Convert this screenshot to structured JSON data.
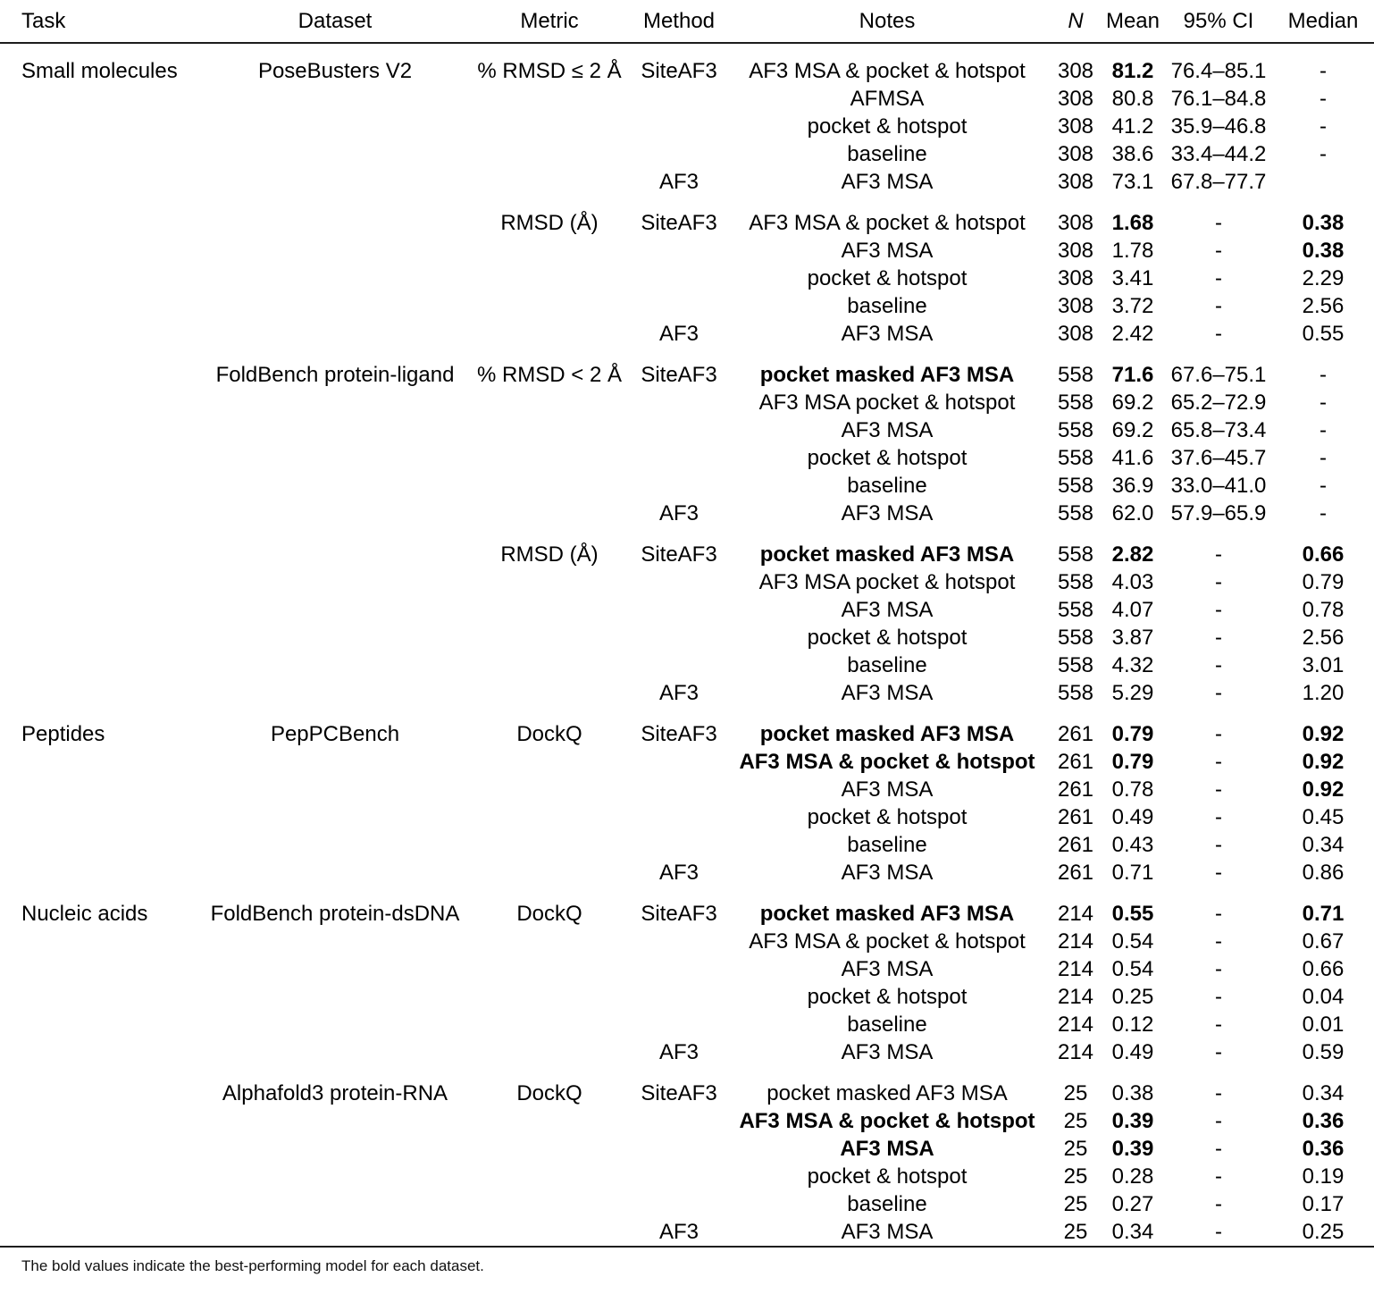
{
  "header": {
    "columns": [
      "Task",
      "Dataset",
      "Metric",
      "Method",
      "Notes",
      "N",
      "Mean",
      "95% CI",
      "Median"
    ]
  },
  "footnote": "The bold values indicate the best-performing model for each dataset.",
  "colors": {
    "text": "#000000",
    "rule": "#1d1d1d",
    "background": "#ffffff"
  },
  "blocks": [
    {
      "task": "Small molecules",
      "dataset": "PoseBusters V2",
      "metric": "% RMSD ≤ 2 Å",
      "rows": [
        {
          "method": "SiteAF3",
          "notes": "AF3 MSA & pocket & hotspot",
          "n": "308",
          "mean": "81.2",
          "ci": "76.4–85.1",
          "median": "-",
          "mean_bold": true
        },
        {
          "method": "",
          "notes": "AFMSA",
          "n": "308",
          "mean": "80.8",
          "ci": "76.1–84.8",
          "median": "-"
        },
        {
          "method": "",
          "notes": "pocket & hotspot",
          "n": "308",
          "mean": "41.2",
          "ci": "35.9–46.8",
          "median": "-"
        },
        {
          "method": "",
          "notes": "baseline",
          "n": "308",
          "mean": "38.6",
          "ci": "33.4–44.2",
          "median": "-"
        },
        {
          "method": "AF3",
          "notes": "AF3 MSA",
          "n": "308",
          "mean": "73.1",
          "ci": "67.8–77.7",
          "median": ""
        }
      ]
    },
    {
      "task": "",
      "dataset": "",
      "metric": "RMSD (Å)",
      "rows": [
        {
          "method": "SiteAF3",
          "notes": "AF3 MSA & pocket & hotspot",
          "n": "308",
          "mean": "1.68",
          "ci": "-",
          "median": "0.38",
          "mean_bold": true,
          "median_bold": true
        },
        {
          "method": "",
          "notes": "AF3 MSA",
          "n": "308",
          "mean": "1.78",
          "ci": "-",
          "median": "0.38",
          "median_bold": true
        },
        {
          "method": "",
          "notes": "pocket & hotspot",
          "n": "308",
          "mean": "3.41",
          "ci": "-",
          "median": "2.29"
        },
        {
          "method": "",
          "notes": "baseline",
          "n": "308",
          "mean": "3.72",
          "ci": "-",
          "median": "2.56"
        },
        {
          "method": "AF3",
          "notes": "AF3 MSA",
          "n": "308",
          "mean": "2.42",
          "ci": "-",
          "median": "0.55"
        }
      ]
    },
    {
      "task": "",
      "dataset": "FoldBench protein-ligand",
      "metric": "% RMSD < 2 Å",
      "rows": [
        {
          "method": "SiteAF3",
          "notes": "pocket masked AF3 MSA",
          "n": "558",
          "mean": "71.6",
          "ci": "67.6–75.1",
          "median": "-",
          "notes_bold": true,
          "mean_bold": true
        },
        {
          "method": "",
          "notes": "AF3 MSA pocket & hotspot",
          "n": "558",
          "mean": "69.2",
          "ci": "65.2–72.9",
          "median": "-"
        },
        {
          "method": "",
          "notes": "AF3 MSA",
          "n": "558",
          "mean": "69.2",
          "ci": "65.8–73.4",
          "median": "-"
        },
        {
          "method": "",
          "notes": "pocket & hotspot",
          "n": "558",
          "mean": "41.6",
          "ci": "37.6–45.7",
          "median": "-"
        },
        {
          "method": "",
          "notes": "baseline",
          "n": "558",
          "mean": "36.9",
          "ci": "33.0–41.0",
          "median": "-"
        },
        {
          "method": "AF3",
          "notes": "AF3 MSA",
          "n": "558",
          "mean": "62.0",
          "ci": "57.9–65.9",
          "median": "-"
        }
      ]
    },
    {
      "task": "",
      "dataset": "",
      "metric": "RMSD (Å)",
      "rows": [
        {
          "method": "SiteAF3",
          "notes": "pocket masked AF3 MSA",
          "n": "558",
          "mean": "2.82",
          "ci": "-",
          "median": "0.66",
          "notes_bold": true,
          "mean_bold": true,
          "median_bold": true
        },
        {
          "method": "",
          "notes": "AF3 MSA pocket & hotspot",
          "n": "558",
          "mean": "4.03",
          "ci": "-",
          "median": "0.79"
        },
        {
          "method": "",
          "notes": "AF3 MSA",
          "n": "558",
          "mean": "4.07",
          "ci": "-",
          "median": "0.78"
        },
        {
          "method": "",
          "notes": "pocket & hotspot",
          "n": "558",
          "mean": "3.87",
          "ci": "-",
          "median": "2.56"
        },
        {
          "method": "",
          "notes": "baseline",
          "n": "558",
          "mean": "4.32",
          "ci": "-",
          "median": "3.01"
        },
        {
          "method": "AF3",
          "notes": "AF3 MSA",
          "n": "558",
          "mean": "5.29",
          "ci": "-",
          "median": "1.20"
        }
      ]
    },
    {
      "task": "Peptides",
      "dataset": "PepPCBench",
      "metric": "DockQ",
      "rows": [
        {
          "method": "SiteAF3",
          "notes": "pocket masked AF3 MSA",
          "n": "261",
          "mean": "0.79",
          "ci": "-",
          "median": "0.92",
          "notes_bold": true,
          "mean_bold": true,
          "median_bold": true
        },
        {
          "method": "",
          "notes": "AF3 MSA & pocket & hotspot",
          "n": "261",
          "mean": "0.79",
          "ci": "-",
          "median": "0.92",
          "notes_bold": true,
          "mean_bold": true,
          "median_bold": true
        },
        {
          "method": "",
          "notes": "AF3 MSA",
          "n": "261",
          "mean": "0.78",
          "ci": "-",
          "median": "0.92",
          "median_bold": true
        },
        {
          "method": "",
          "notes": "pocket & hotspot",
          "n": "261",
          "mean": "0.49",
          "ci": "-",
          "median": "0.45"
        },
        {
          "method": "",
          "notes": "baseline",
          "n": "261",
          "mean": "0.43",
          "ci": "-",
          "median": "0.34"
        },
        {
          "method": "AF3",
          "notes": "AF3 MSA",
          "n": "261",
          "mean": "0.71",
          "ci": "-",
          "median": "0.86"
        }
      ]
    },
    {
      "task": "Nucleic acids",
      "dataset": "FoldBench protein-dsDNA",
      "metric": "DockQ",
      "rows": [
        {
          "method": "SiteAF3",
          "notes": "pocket masked AF3 MSA",
          "n": "214",
          "mean": "0.55",
          "ci": "-",
          "median": "0.71",
          "notes_bold": true,
          "mean_bold": true,
          "median_bold": true
        },
        {
          "method": "",
          "notes": "AF3 MSA & pocket & hotspot",
          "n": "214",
          "mean": "0.54",
          "ci": "-",
          "median": "0.67"
        },
        {
          "method": "",
          "notes": "AF3 MSA",
          "n": "214",
          "mean": "0.54",
          "ci": "-",
          "median": "0.66"
        },
        {
          "method": "",
          "notes": "pocket & hotspot",
          "n": "214",
          "mean": "0.25",
          "ci": "-",
          "median": "0.04"
        },
        {
          "method": "",
          "notes": "baseline",
          "n": "214",
          "mean": "0.12",
          "ci": "-",
          "median": "0.01"
        },
        {
          "method": "AF3",
          "notes": "AF3 MSA",
          "n": "214",
          "mean": "0.49",
          "ci": "-",
          "median": "0.59"
        }
      ]
    },
    {
      "task": "",
      "dataset": "Alphafold3 protein-RNA",
      "metric": "DockQ",
      "rows": [
        {
          "method": "SiteAF3",
          "notes": "pocket masked AF3 MSA",
          "n": "25",
          "mean": "0.38",
          "ci": "-",
          "median": "0.34"
        },
        {
          "method": "",
          "notes": "AF3 MSA & pocket & hotspot",
          "n": "25",
          "mean": "0.39",
          "ci": "-",
          "median": "0.36",
          "notes_bold": true,
          "mean_bold": true,
          "median_bold": true
        },
        {
          "method": "",
          "notes": "AF3 MSA",
          "n": "25",
          "mean": "0.39",
          "ci": "-",
          "median": "0.36",
          "notes_bold": true,
          "mean_bold": true,
          "median_bold": true
        },
        {
          "method": "",
          "notes": "pocket & hotspot",
          "n": "25",
          "mean": "0.28",
          "ci": "-",
          "median": "0.19"
        },
        {
          "method": "",
          "notes": "baseline",
          "n": "25",
          "mean": "0.27",
          "ci": "-",
          "median": "0.17"
        },
        {
          "method": "AF3",
          "notes": "AF3 MSA",
          "n": "25",
          "mean": "0.34",
          "ci": "-",
          "median": "0.25"
        }
      ]
    }
  ]
}
